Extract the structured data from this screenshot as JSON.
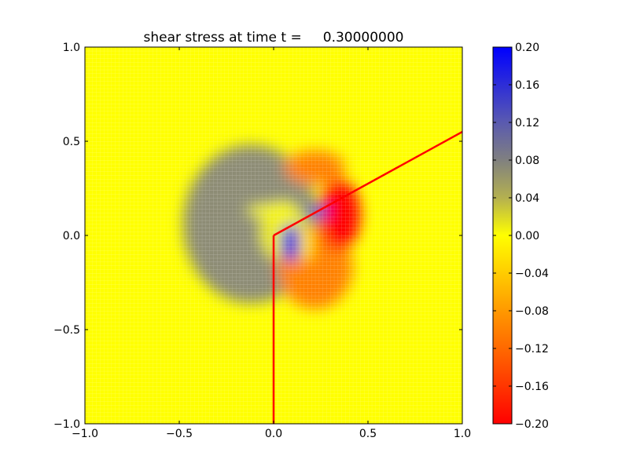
{
  "chart_data": {
    "type": "heatmap",
    "title": "shear stress at time t =     0.30000000",
    "xlim": [
      -1.0,
      1.0
    ],
    "ylim": [
      -1.0,
      1.0
    ],
    "xticks": [
      -1.0,
      -0.5,
      0.0,
      0.5,
      1.0
    ],
    "xtick_labels": [
      "−1.0",
      "−0.5",
      "0.0",
      "0.5",
      "1.0"
    ],
    "yticks": [
      -1.0,
      -0.5,
      0.0,
      0.5,
      1.0
    ],
    "ytick_labels": [
      "−1.0",
      "−0.5",
      "0.0",
      "0.5",
      "1.0"
    ],
    "background_value": 0.0,
    "features": [
      {
        "x": -0.12,
        "y": 0.06,
        "rx": 0.36,
        "ry": 0.42,
        "value": 0.07
      },
      {
        "x": 0.05,
        "y": 0.02,
        "rx": 0.12,
        "ry": 0.16,
        "value": 0.01
      },
      {
        "x": 0.22,
        "y": 0.36,
        "rx": 0.16,
        "ry": 0.09,
        "value": -0.1
      },
      {
        "x": 0.22,
        "y": -0.17,
        "rx": 0.2,
        "ry": 0.22,
        "value": -0.1
      },
      {
        "x": 0.35,
        "y": 0.11,
        "rx": 0.11,
        "ry": 0.19,
        "value": -0.2
      },
      {
        "x": 0.09,
        "y": -0.04,
        "rx": 0.05,
        "ry": 0.1,
        "value": 0.17
      },
      {
        "x": 0.24,
        "y": 0.13,
        "rx": 0.05,
        "ry": 0.025,
        "value": 0.19
      },
      {
        "x": -0.01,
        "y": 0.13,
        "rx": 0.13,
        "ry": 0.03,
        "value": 0.0
      },
      {
        "x": 0.175,
        "y": -0.04,
        "rx": 0.025,
        "ry": 0.1,
        "value": 0.0
      }
    ],
    "overlay_lines": [
      {
        "name": "vertical-segment",
        "color": "#ff0000",
        "points": [
          [
            0.0,
            0.0
          ],
          [
            0.0,
            -1.0
          ]
        ]
      },
      {
        "name": "oblique-segment",
        "color": "#ff0000",
        "points": [
          [
            0.0,
            0.0
          ],
          [
            1.0,
            0.55
          ]
        ]
      }
    ],
    "colorbar": {
      "range": [
        -0.2,
        0.2
      ],
      "ticks": [
        0.2,
        0.16,
        0.12,
        0.08,
        0.04,
        0.0,
        -0.04,
        -0.08,
        -0.12,
        -0.16,
        -0.2
      ],
      "tick_labels": [
        "0.20",
        "0.16",
        "0.12",
        "0.08",
        "0.04",
        "0.00",
        "−0.04",
        "−0.08",
        "−0.12",
        "−0.16",
        "−0.20"
      ],
      "colors": {
        "max": "#0000ff",
        "mid_pos": "#808080",
        "zero": "#ffff00",
        "mid_neg": "#ff9900",
        "min": "#ff0000"
      }
    }
  }
}
